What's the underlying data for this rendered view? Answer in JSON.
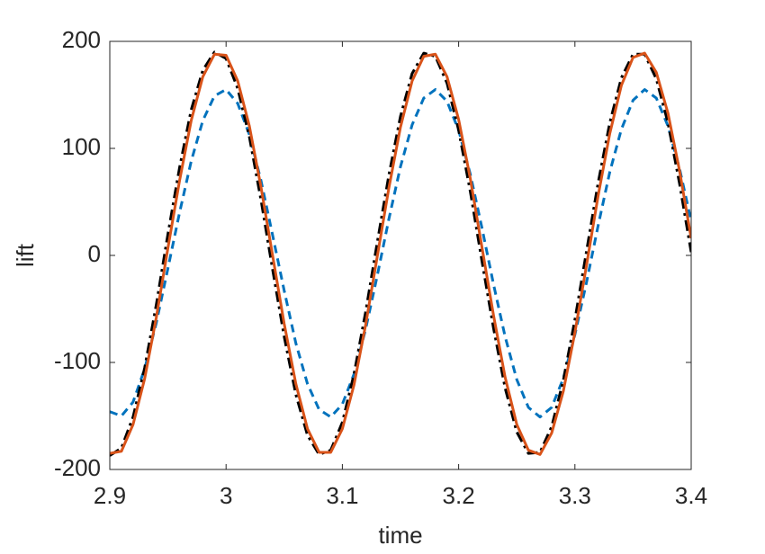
{
  "chart_data": {
    "type": "line",
    "x_label": "time",
    "y_label": "lift",
    "x": [
      2.9,
      2.91,
      2.92,
      2.93,
      2.94,
      2.95,
      2.96,
      2.97,
      2.98,
      2.99,
      3.0,
      3.01,
      3.02,
      3.03,
      3.04,
      3.05,
      3.06,
      3.07,
      3.08,
      3.09,
      3.1,
      3.11,
      3.12,
      3.13,
      3.14,
      3.15,
      3.16,
      3.17,
      3.18,
      3.19,
      3.2,
      3.21,
      3.22,
      3.23,
      3.24,
      3.25,
      3.26,
      3.27,
      3.28,
      3.29,
      3.3,
      3.31,
      3.32,
      3.33,
      3.34,
      3.35,
      3.36,
      3.37,
      3.38,
      3.39,
      3.4
    ],
    "series": [
      {
        "color": "#0072bd",
        "dash": "dashed",
        "values": [
          -146,
          -150,
          -137,
          -106,
          -63,
          -12,
          40,
          88,
          126,
          149,
          155,
          142,
          113,
          70,
          19,
          -33,
          -82,
          -120,
          -144,
          -151,
          -139,
          -111,
          -69,
          -19,
          34,
          83,
          122,
          147,
          155,
          144,
          117,
          76,
          26,
          -27,
          -76,
          -116,
          -142,
          -151,
          -142,
          -115,
          -74,
          -25,
          28,
          78,
          118,
          145,
          155,
          147,
          121,
          81,
          32
        ]
      },
      {
        "color": "#000000",
        "dash": "dashdot",
        "values": [
          -187,
          -180,
          -151,
          -105,
          -46,
          20,
          82,
          136,
          173,
          190,
          184,
          156,
          111,
          52,
          -13,
          -76,
          -130,
          -168,
          -186,
          -182,
          -156,
          -111,
          -53,
          12,
          75,
          130,
          170,
          189,
          186,
          161,
          117,
          60,
          -5,
          -68,
          -124,
          -165,
          -185,
          -184,
          -160,
          -117,
          -60,
          4,
          68,
          124,
          166,
          188,
          188,
          165,
          124,
          67,
          3
        ]
      },
      {
        "color": "#d95319",
        "dash": "solid",
        "values": [
          -185,
          -183,
          -158,
          -115,
          -58,
          7,
          70,
          126,
          167,
          188,
          187,
          163,
          121,
          64,
          0,
          -64,
          -120,
          -162,
          -184,
          -184,
          -162,
          -121,
          -65,
          -1,
          63,
          120,
          163,
          186,
          188,
          167,
          127,
          72,
          8,
          -56,
          -114,
          -158,
          -182,
          -186,
          -166,
          -127,
          -72,
          -9,
          56,
          114,
          159,
          185,
          189,
          171,
          133,
          79,
          16
        ]
      }
    ],
    "xlim": [
      2.9,
      3.4
    ],
    "xticks": [
      2.9,
      3,
      3.1,
      3.2,
      3.3,
      3.4
    ],
    "ylim": [
      -200,
      200
    ],
    "yticks": [
      -200,
      -100,
      0,
      100,
      200
    ],
    "grid": false
  }
}
